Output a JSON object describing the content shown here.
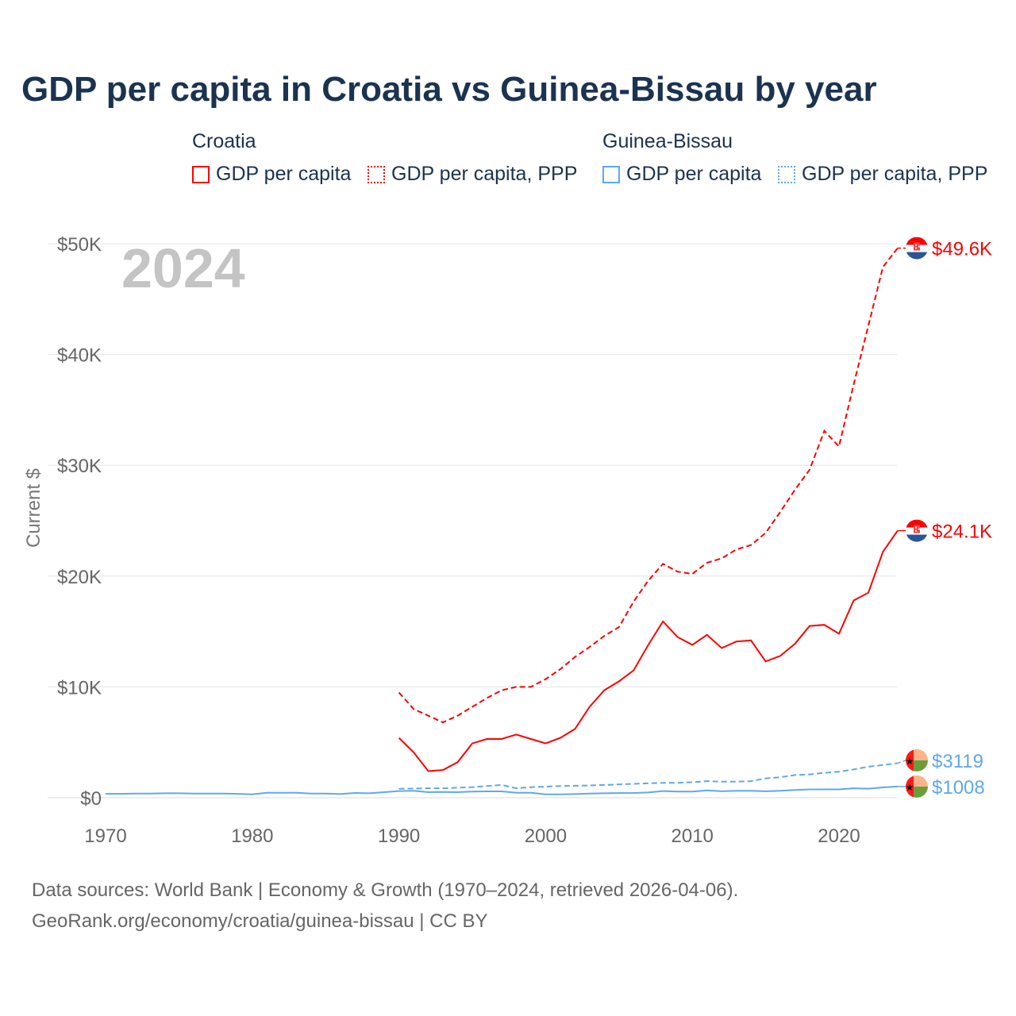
{
  "title": "GDP per capita in Croatia vs Guinea-Bissau by year",
  "legend": {
    "groups": [
      {
        "name": "Croatia",
        "color": "#ff0000",
        "items": [
          "GDP per capita",
          "GDP per capita, PPP"
        ]
      },
      {
        "name": "Guinea-Bissau",
        "color": "#5fa8ee",
        "items": [
          "GDP per capita",
          "GDP per capita, PPP"
        ]
      }
    ]
  },
  "year_watermark": "2024",
  "footer": {
    "line1": "Data sources: World Bank | Economy & Growth (1970–2024, retrieved 2026-04-06).",
    "line2": "GeoRank.org/economy/croatia/guinea-bissau | CC BY"
  },
  "chart_data": {
    "type": "line",
    "title": "GDP per capita in Croatia vs Guinea-Bissau by year",
    "xlabel": "",
    "ylabel": "Current $",
    "xlim": [
      1970,
      2024
    ],
    "ylim": [
      0,
      50
    ],
    "x_ticks": [
      1970,
      1980,
      1990,
      2000,
      2010,
      2020
    ],
    "y_ticks": [
      {
        "v": 0,
        "label": "$0"
      },
      {
        "v": 10,
        "label": "$10K"
      },
      {
        "v": 20,
        "label": "$20K"
      },
      {
        "v": 30,
        "label": "$30K"
      },
      {
        "v": 40,
        "label": "$40K"
      },
      {
        "v": 50,
        "label": "$50K"
      }
    ],
    "units": "thousand USD",
    "series": [
      {
        "name": "Croatia GDP per capita",
        "country": "Croatia",
        "color": "#ff0000",
        "dash": false,
        "start": 1990,
        "end_label": "$24.1K",
        "values": [
          5.4,
          4.1,
          2.4,
          2.5,
          3.2,
          4.9,
          5.3,
          5.3,
          5.7,
          5.3,
          4.9,
          5.4,
          6.2,
          8.2,
          9.7,
          10.5,
          11.5,
          13.8,
          15.9,
          14.5,
          13.8,
          14.7,
          13.5,
          14.1,
          14.2,
          12.3,
          12.8,
          13.9,
          15.5,
          15.6,
          14.8,
          17.8,
          18.5,
          22.2,
          24.1
        ]
      },
      {
        "name": "Croatia GDP per capita, PPP",
        "country": "Croatia",
        "color": "#ff0000",
        "dash": true,
        "start": 1990,
        "end_label": "$49.6K",
        "values": [
          9.5,
          8.0,
          7.4,
          6.8,
          7.4,
          8.2,
          9.0,
          9.7,
          10.0,
          10.0,
          10.7,
          11.6,
          12.7,
          13.6,
          14.6,
          15.4,
          17.7,
          19.6,
          21.1,
          20.4,
          20.2,
          21.2,
          21.6,
          22.4,
          22.8,
          23.9,
          25.8,
          27.8,
          29.6,
          33.1,
          31.7,
          37.3,
          42.6,
          47.9,
          49.6
        ]
      },
      {
        "name": "Guinea-Bissau GDP per capita",
        "country": "Guinea-Bissau",
        "color": "#5fa8ee",
        "dash": false,
        "start": 1970,
        "end_label": "$1008",
        "values": [
          0.35,
          0.35,
          0.38,
          0.38,
          0.4,
          0.4,
          0.38,
          0.38,
          0.38,
          0.35,
          0.3,
          0.45,
          0.45,
          0.45,
          0.38,
          0.38,
          0.33,
          0.43,
          0.4,
          0.5,
          0.6,
          0.62,
          0.5,
          0.52,
          0.5,
          0.55,
          0.57,
          0.57,
          0.45,
          0.45,
          0.3,
          0.3,
          0.33,
          0.37,
          0.4,
          0.42,
          0.43,
          0.47,
          0.6,
          0.55,
          0.55,
          0.66,
          0.58,
          0.62,
          0.62,
          0.58,
          0.62,
          0.7,
          0.75,
          0.75,
          0.75,
          0.85,
          0.82,
          0.93,
          1.008
        ]
      },
      {
        "name": "Guinea-Bissau GDP per capita, PPP",
        "country": "Guinea-Bissau",
        "color": "#5fa8ee",
        "dash": true,
        "start": 1990,
        "end_label": "$3119",
        "values": [
          0.8,
          0.83,
          0.85,
          0.85,
          0.9,
          0.95,
          1.05,
          1.15,
          0.85,
          0.95,
          1.0,
          1.05,
          1.08,
          1.1,
          1.15,
          1.2,
          1.25,
          1.3,
          1.35,
          1.35,
          1.4,
          1.5,
          1.45,
          1.45,
          1.5,
          1.75,
          1.85,
          2.05,
          2.1,
          2.25,
          2.35,
          2.55,
          2.8,
          2.95,
          3.119
        ]
      }
    ]
  }
}
